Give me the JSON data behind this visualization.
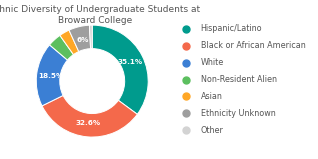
{
  "title": "Ethnic Diversity of Undergraduate Students at\nBroward College",
  "labels": [
    "Hispanic/Latino",
    "Black or African American",
    "White",
    "Non-Resident Alien",
    "Asian",
    "Ethnicity Unknown",
    "Other"
  ],
  "values": [
    35.1,
    32.6,
    18.5,
    4.0,
    3.0,
    6.0,
    0.8
  ],
  "colors": [
    "#009B8D",
    "#F4694B",
    "#3B7FD4",
    "#5CBF5F",
    "#FFA726",
    "#9E9E9E",
    "#D3D3D3"
  ],
  "pct_labels": [
    "35.1%",
    "32.6%",
    "18.5%",
    "",
    "",
    "6%",
    ""
  ],
  "title_fontsize": 6.5,
  "legend_fontsize": 5.8,
  "background_color": "#ffffff"
}
